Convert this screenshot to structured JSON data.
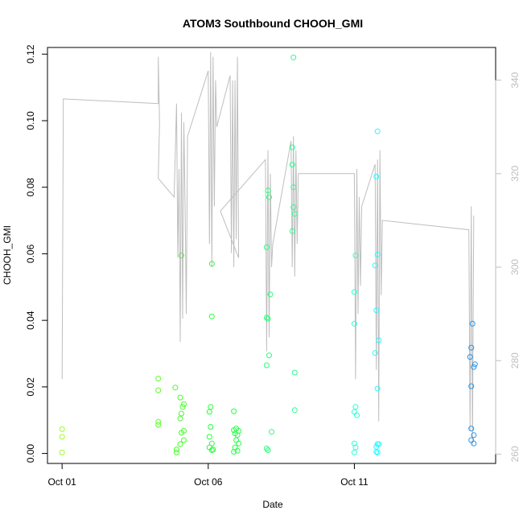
{
  "chart_data": {
    "type": "scatter",
    "title": "ATOM3 Southbound CHOOH_GMI",
    "xlabel": "Date",
    "ylabel": "CHOOH_GMI",
    "xlim": [
      "2017-09-30T12:00",
      "2017-10-15T20:00"
    ],
    "ylim": [
      -0.003,
      0.122
    ],
    "y2lim": [
      258,
      347
    ],
    "x_ticks": [
      {
        "value": "2017-10-01",
        "label": "Oct 01"
      },
      {
        "value": "2017-10-06",
        "label": "Oct 06"
      },
      {
        "value": "2017-10-11",
        "label": "Oct 11"
      }
    ],
    "y_ticks": [
      {
        "value": 0.0,
        "label": "0.00"
      },
      {
        "value": 0.02,
        "label": "0.02"
      },
      {
        "value": 0.04,
        "label": "0.04"
      },
      {
        "value": 0.06,
        "label": "0.06"
      },
      {
        "value": 0.08,
        "label": "0.08"
      },
      {
        "value": 0.1,
        "label": "0.10"
      },
      {
        "value": 0.12,
        "label": "0.12"
      }
    ],
    "y2_ticks": [
      {
        "value": 260,
        "label": "260"
      },
      {
        "value": 280,
        "label": "280"
      },
      {
        "value": 300,
        "label": "300"
      },
      {
        "value": 320,
        "label": "320"
      },
      {
        "value": 340,
        "label": "340"
      }
    ],
    "grid": false,
    "colors": {
      "axis": "#000000",
      "secondary_axis": "#bebebe",
      "line": "#bebebe"
    },
    "series": [
      {
        "axis": "left",
        "marker": "open-circle",
        "points": [
          {
            "x": "2017-10-01T00:00",
            "y": 0.0073,
            "color": "#9cff26"
          },
          {
            "x": "2017-10-01T00:00",
            "y": 0.005,
            "color": "#9cff26"
          },
          {
            "x": "2017-10-01T00:00",
            "y": 0.0003,
            "color": "#9cff26"
          },
          {
            "x": "2017-10-04T07:00",
            "y": 0.0225,
            "color": "#5cff26"
          },
          {
            "x": "2017-10-04T07:00",
            "y": 0.019,
            "color": "#5cff26"
          },
          {
            "x": "2017-10-04T07:00",
            "y": 0.0095,
            "color": "#5cff26"
          },
          {
            "x": "2017-10-04T07:00",
            "y": 0.0086,
            "color": "#5cff26"
          },
          {
            "x": "2017-10-04T21:00",
            "y": 0.0198,
            "color": "#45ff26"
          },
          {
            "x": "2017-10-05T02:00",
            "y": 0.0595,
            "color": "#45ff26"
          },
          {
            "x": "2017-10-05T01:00",
            "y": 0.0168,
            "color": "#45ff26"
          },
          {
            "x": "2017-10-05T04:00",
            "y": 0.0148,
            "color": "#45ff26"
          },
          {
            "x": "2017-10-05T03:00",
            "y": 0.014,
            "color": "#45ff26"
          },
          {
            "x": "2017-10-05T02:00",
            "y": 0.012,
            "color": "#45ff26"
          },
          {
            "x": "2017-10-05T01:00",
            "y": 0.0105,
            "color": "#45ff26"
          },
          {
            "x": "2017-10-05T04:00",
            "y": 0.0068,
            "color": "#45ff26"
          },
          {
            "x": "2017-10-05T02:00",
            "y": 0.0062,
            "color": "#45ff26"
          },
          {
            "x": "2017-10-05T04:00",
            "y": 0.004,
            "color": "#45ff26"
          },
          {
            "x": "2017-10-05T01:00",
            "y": 0.0028,
            "color": "#45ff26"
          },
          {
            "x": "2017-10-04T22:00",
            "y": 0.0012,
            "color": "#45ff26"
          },
          {
            "x": "2017-10-04T22:00",
            "y": 0.0003,
            "color": "#45ff26"
          },
          {
            "x": "2017-10-06T03:00",
            "y": 0.057,
            "color": "#28ff3a"
          },
          {
            "x": "2017-10-06T03:00",
            "y": 0.0412,
            "color": "#28ff3a"
          },
          {
            "x": "2017-10-06T02:00",
            "y": 0.014,
            "color": "#28ff3a"
          },
          {
            "x": "2017-10-06T01:00",
            "y": 0.0125,
            "color": "#28ff3a"
          },
          {
            "x": "2017-10-06T02:00",
            "y": 0.008,
            "color": "#28ff3a"
          },
          {
            "x": "2017-10-06T01:00",
            "y": 0.005,
            "color": "#28ff3a"
          },
          {
            "x": "2017-10-06T03:00",
            "y": 0.003,
            "color": "#28ff3a"
          },
          {
            "x": "2017-10-06T01:00",
            "y": 0.0018,
            "color": "#28ff3a"
          },
          {
            "x": "2017-10-06T03:00",
            "y": 0.001,
            "color": "#28ff3a"
          },
          {
            "x": "2017-10-06T04:00",
            "y": 0.0012,
            "color": "#28ff3a"
          },
          {
            "x": "2017-10-06T21:00",
            "y": 0.0127,
            "color": "#28ff48"
          },
          {
            "x": "2017-10-06T23:00",
            "y": 0.0075,
            "color": "#28ff48"
          },
          {
            "x": "2017-10-06T21:00",
            "y": 0.007,
            "color": "#28ff48"
          },
          {
            "x": "2017-10-07T01:00",
            "y": 0.0068,
            "color": "#28ff48"
          },
          {
            "x": "2017-10-06T22:00",
            "y": 0.006,
            "color": "#28ff48"
          },
          {
            "x": "2017-10-07T00:00",
            "y": 0.0055,
            "color": "#28ff48"
          },
          {
            "x": "2017-10-06T23:00",
            "y": 0.004,
            "color": "#28ff48"
          },
          {
            "x": "2017-10-07T01:00",
            "y": 0.003,
            "color": "#28ff48"
          },
          {
            "x": "2017-10-06T22:00",
            "y": 0.0018,
            "color": "#28ff48"
          },
          {
            "x": "2017-10-07T00:00",
            "y": 0.0008,
            "color": "#28ff48"
          },
          {
            "x": "2017-10-06T21:00",
            "y": 0.0005,
            "color": "#28ff48"
          },
          {
            "x": "2017-10-08T01:00",
            "y": 0.079,
            "color": "#28ff78"
          },
          {
            "x": "2017-10-08T02:00",
            "y": 0.077,
            "color": "#28ff78"
          },
          {
            "x": "2017-10-08T00:00",
            "y": 0.062,
            "color": "#28ff78"
          },
          {
            "x": "2017-10-08T03:00",
            "y": 0.0478,
            "color": "#28ff78"
          },
          {
            "x": "2017-10-08T00:00",
            "y": 0.0408,
            "color": "#28ff78"
          },
          {
            "x": "2017-10-08T01:00",
            "y": 0.0405,
            "color": "#28ff78"
          },
          {
            "x": "2017-10-08T02:00",
            "y": 0.0295,
            "color": "#28ff78"
          },
          {
            "x": "2017-10-08T00:00",
            "y": 0.0265,
            "color": "#28ff78"
          },
          {
            "x": "2017-10-08T04:00",
            "y": 0.0065,
            "color": "#28ff78"
          },
          {
            "x": "2017-10-08T00:00",
            "y": 0.0015,
            "color": "#28ff78"
          },
          {
            "x": "2017-10-08T01:00",
            "y": 0.001,
            "color": "#28ff78"
          },
          {
            "x": "2017-10-08T22:00",
            "y": 0.119,
            "color": "#28ff93"
          },
          {
            "x": "2017-10-08T21:00",
            "y": 0.092,
            "color": "#28ff93"
          },
          {
            "x": "2017-10-08T21:00",
            "y": 0.0868,
            "color": "#28ff93"
          },
          {
            "x": "2017-10-08T22:00",
            "y": 0.08,
            "color": "#28ff93"
          },
          {
            "x": "2017-10-08T22:00",
            "y": 0.074,
            "color": "#28ff93"
          },
          {
            "x": "2017-10-08T23:00",
            "y": 0.072,
            "color": "#28ff93"
          },
          {
            "x": "2017-10-08T21:00",
            "y": 0.0668,
            "color": "#28ff93"
          },
          {
            "x": "2017-10-08T23:00",
            "y": 0.0243,
            "color": "#28ff93"
          },
          {
            "x": "2017-10-08T23:00",
            "y": 0.013,
            "color": "#28ff93"
          },
          {
            "x": "2017-10-11T01:00",
            "y": 0.0595,
            "color": "#28ffd8"
          },
          {
            "x": "2017-10-11T00:00",
            "y": 0.0485,
            "color": "#28ffd8"
          },
          {
            "x": "2017-10-11T00:00",
            "y": 0.039,
            "color": "#28ffd8"
          },
          {
            "x": "2017-10-11T01:00",
            "y": 0.014,
            "color": "#28ffd8"
          },
          {
            "x": "2017-10-11T00:00",
            "y": 0.0125,
            "color": "#28ffd8"
          },
          {
            "x": "2017-10-11T02:00",
            "y": 0.0115,
            "color": "#28ffd8"
          },
          {
            "x": "2017-10-11T00:00",
            "y": 0.003,
            "color": "#28ffd8"
          },
          {
            "x": "2017-10-11T01:00",
            "y": 0.0018,
            "color": "#28ffd8"
          },
          {
            "x": "2017-10-11T00:00",
            "y": 0.0003,
            "color": "#28ffd8"
          },
          {
            "x": "2017-10-11T19:00",
            "y": 0.0968,
            "color": "#28f8ff"
          },
          {
            "x": "2017-10-11T18:00",
            "y": 0.0832,
            "color": "#28f8ff"
          },
          {
            "x": "2017-10-11T19:00",
            "y": 0.0598,
            "color": "#28f8ff"
          },
          {
            "x": "2017-10-11T17:00",
            "y": 0.0565,
            "color": "#28f8ff"
          },
          {
            "x": "2017-10-11T18:00",
            "y": 0.043,
            "color": "#28f8ff"
          },
          {
            "x": "2017-10-11T20:00",
            "y": 0.034,
            "color": "#28f8ff"
          },
          {
            "x": "2017-10-11T17:00",
            "y": 0.0302,
            "color": "#28f8ff"
          },
          {
            "x": "2017-10-11T19:00",
            "y": 0.0195,
            "color": "#28f8ff"
          },
          {
            "x": "2017-10-11T19:00",
            "y": 0.0028,
            "color": "#28f8ff"
          },
          {
            "x": "2017-10-11T20:00",
            "y": 0.0028,
            "color": "#28f8ff"
          },
          {
            "x": "2017-10-11T18:00",
            "y": 0.002,
            "color": "#28f8ff"
          },
          {
            "x": "2017-10-11T18:00",
            "y": 0.0005,
            "color": "#28f8ff"
          },
          {
            "x": "2017-10-11T19:00",
            "y": 0.0003,
            "color": "#28f8ff"
          },
          {
            "x": "2017-10-15T01:00",
            "y": 0.039,
            "color": "#2896e8"
          },
          {
            "x": "2017-10-15T00:00",
            "y": 0.0318,
            "color": "#2896e8"
          },
          {
            "x": "2017-10-14T23:00",
            "y": 0.029,
            "color": "#2896e8"
          },
          {
            "x": "2017-10-15T03:00",
            "y": 0.0268,
            "color": "#2896e8"
          },
          {
            "x": "2017-10-15T02:00",
            "y": 0.026,
            "color": "#2896e8"
          },
          {
            "x": "2017-10-15T00:00",
            "y": 0.0202,
            "color": "#2896e8"
          },
          {
            "x": "2017-10-15T00:00",
            "y": 0.0075,
            "color": "#2896e8"
          },
          {
            "x": "2017-10-15T02:00",
            "y": 0.0055,
            "color": "#2896e8"
          },
          {
            "x": "2017-10-15T00:00",
            "y": 0.004,
            "color": "#2896e8"
          },
          {
            "x": "2017-10-15T02:00",
            "y": 0.003,
            "color": "#2896e8"
          }
        ]
      },
      {
        "axis": "right",
        "type": "line",
        "color": "#bebebe",
        "points": [
          [
            "2017-10-01T00:00",
            276
          ],
          [
            "2017-10-01T01:00",
            336
          ],
          [
            "2017-10-04T07:00",
            335
          ],
          [
            "2017-10-04T07:00",
            345
          ],
          [
            "2017-10-04T08:00",
            331
          ],
          [
            "2017-10-04T07:00",
            319
          ],
          [
            "2017-10-04T20:00",
            315
          ],
          [
            "2017-10-04T22:00",
            335
          ],
          [
            "2017-10-04T23:00",
            302
          ],
          [
            "2017-10-05T00:00",
            321
          ],
          [
            "2017-10-05T01:00",
            284
          ],
          [
            "2017-10-05T02:00",
            333
          ],
          [
            "2017-10-05T03:00",
            289
          ],
          [
            "2017-10-05T04:00",
            331
          ],
          [
            "2017-10-05T05:00",
            314
          ],
          [
            "2017-10-05T06:00",
            290
          ],
          [
            "2017-10-05T07:00",
            328
          ],
          [
            "2017-10-06T00:00",
            342
          ],
          [
            "2017-10-06T01:00",
            305
          ],
          [
            "2017-10-06T02:00",
            346
          ],
          [
            "2017-10-06T03:00",
            300
          ],
          [
            "2017-10-06T04:00",
            345
          ],
          [
            "2017-10-06T05:00",
            313
          ],
          [
            "2017-10-06T06:00",
            340
          ],
          [
            "2017-10-06T07:00",
            330
          ],
          [
            "2017-10-06T18:00",
            341
          ],
          [
            "2017-10-06T19:00",
            303
          ],
          [
            "2017-10-06T20:00",
            340
          ],
          [
            "2017-10-06T21:00",
            300
          ],
          [
            "2017-10-06T22:00",
            340
          ],
          [
            "2017-10-06T23:00",
            306
          ],
          [
            "2017-10-07T00:00",
            345
          ],
          [
            "2017-10-07T01:00",
            302
          ],
          [
            "2017-10-06T10:00",
            312
          ],
          [
            "2017-10-07T23:00",
            323
          ],
          [
            "2017-10-08T00:00",
            282
          ],
          [
            "2017-10-08T01:00",
            325
          ],
          [
            "2017-10-08T02:00",
            285
          ],
          [
            "2017-10-08T03:00",
            320
          ],
          [
            "2017-10-08T04:00",
            300
          ],
          [
            "2017-10-08T05:00",
            305
          ],
          [
            "2017-10-08T20:00",
            327
          ],
          [
            "2017-10-08T21:00",
            300
          ],
          [
            "2017-10-08T22:00",
            328
          ],
          [
            "2017-10-08T23:00",
            298
          ],
          [
            "2017-10-09T00:00",
            325
          ],
          [
            "2017-10-09T01:00",
            305
          ],
          [
            "2017-10-09T02:00",
            320
          ],
          [
            "2017-10-11T00:00",
            320
          ],
          [
            "2017-10-11T01:00",
            276
          ],
          [
            "2017-10-11T02:00",
            321
          ],
          [
            "2017-10-11T03:00",
            290
          ],
          [
            "2017-10-11T04:00",
            315
          ],
          [
            "2017-10-11T05:00",
            296
          ],
          [
            "2017-10-11T06:00",
            313
          ],
          [
            "2017-10-11T17:00",
            322
          ],
          [
            "2017-10-11T18:00",
            278
          ],
          [
            "2017-10-11T19:00",
            323
          ],
          [
            "2017-10-11T20:00",
            267
          ],
          [
            "2017-10-11T21:00",
            325
          ],
          [
            "2017-10-11T22:00",
            294
          ],
          [
            "2017-10-11T23:00",
            310
          ],
          [
            "2017-10-14T22:00",
            308
          ],
          [
            "2017-10-14T23:00",
            265
          ],
          [
            "2017-10-15T00:00",
            313
          ],
          [
            "2017-10-15T01:00",
            262
          ],
          [
            "2017-10-15T02:00",
            311
          ]
        ]
      }
    ]
  }
}
